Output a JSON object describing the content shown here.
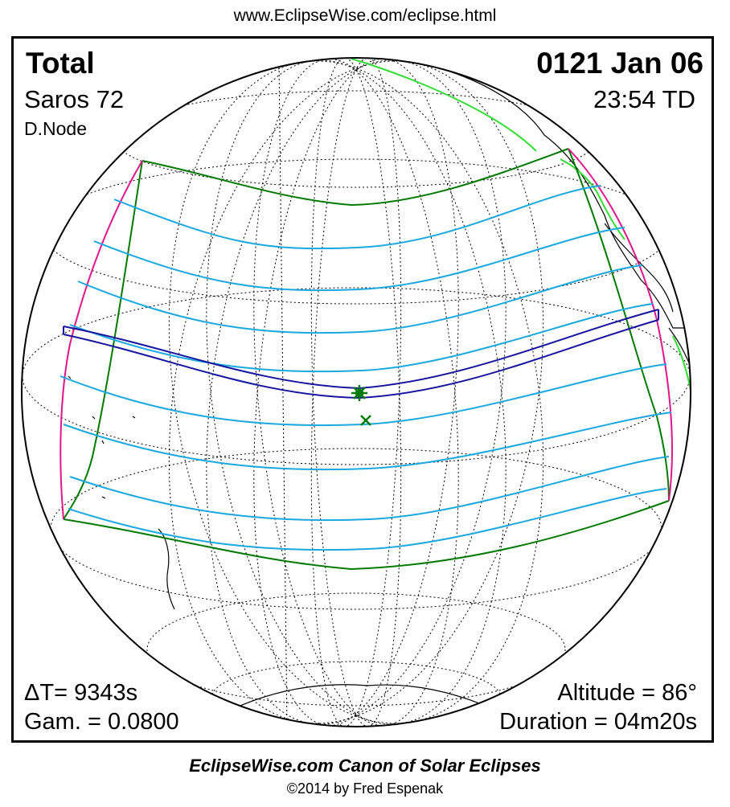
{
  "header": {
    "url": "www.EclipseWise.com/eclipse.html"
  },
  "eclipse": {
    "type": "Total",
    "date": "0121 Jan 06",
    "saros": "Saros  72",
    "time": "23:54 TD",
    "node": "D.Node",
    "delta_t": "ΔT=   9343s",
    "gamma": "Gam. = 0.0800",
    "altitude": "Altitude = 86°",
    "duration": "Duration = 04m20s"
  },
  "footer": {
    "canon": "EclipseWise.com Canon of Solar Eclipses",
    "copyright": "©2014 by Fred Espenak"
  },
  "map": {
    "projection": "orthographic globe",
    "colors": {
      "penumbra_limits": "#007a00",
      "partial_lines": "#1ba8e0",
      "central_path": "#1515a0",
      "sunrise_sunset_curves": "#e0168c",
      "coastlines": "#000000",
      "graticule": "#000000",
      "greatest_eclipse_marker": "#007a00",
      "subsolar_marker": "#007a00",
      "coast_highlight": "#33dd33"
    },
    "markers": [
      "greatest-eclipse-star-icon",
      "subsolar-point-x-icon"
    ]
  }
}
